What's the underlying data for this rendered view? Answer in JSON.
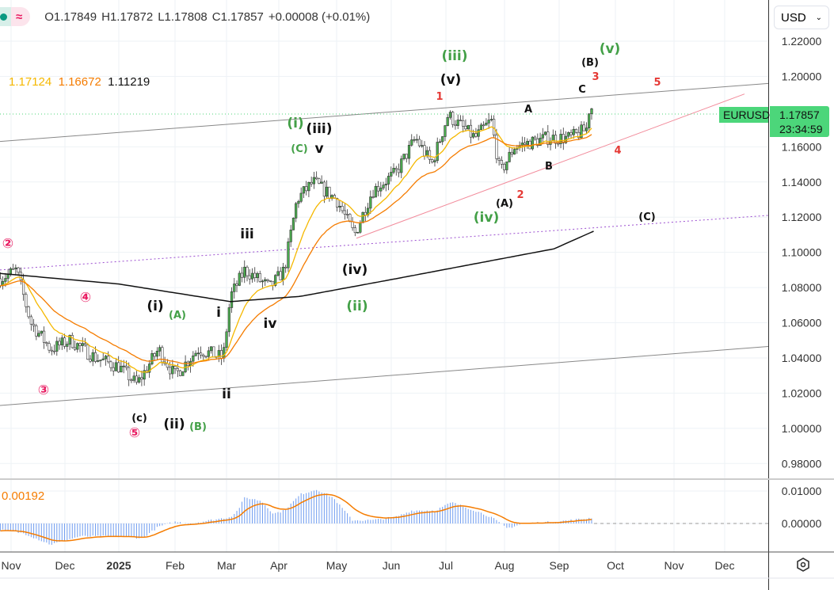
{
  "header": {
    "open": "O1.17849",
    "high": "H1.17872",
    "low": "L1.17808",
    "close": "C1.17857",
    "change": "+0.00008 (+0.01%)",
    "wave_icon": "≈"
  },
  "ma_values": {
    "ma1": "1.17124",
    "ma2": "1.16672",
    "ma3": "1.11219",
    "colors": [
      "#f5b800",
      "#f57c00",
      "#111111"
    ]
  },
  "currency": "USD",
  "symbol_tag": {
    "symbol": "EURUSD",
    "price": "1.17857",
    "countdown": "23:34:59",
    "color": "#4cd67a"
  },
  "macd": {
    "value": "0.00192",
    "ticks": [
      "0.01000",
      "0.00000"
    ]
  },
  "chart_data": {
    "type": "candlestick",
    "symbol": "EURUSD",
    "y_ticks": [
      "1.22000",
      "1.20000",
      "1.16000",
      "1.14000",
      "1.12000",
      "1.10000",
      "1.08000",
      "1.06000",
      "1.04000",
      "1.02000",
      "1.00000",
      "0.98000"
    ],
    "ylim": [
      0.975,
      1.225
    ],
    "x_ticks": [
      "Nov",
      "Dec",
      "2025",
      "Feb",
      "Mar",
      "Apr",
      "May",
      "Jun",
      "Jul",
      "Aug",
      "Sep",
      "Oct",
      "Nov",
      "Dec"
    ],
    "price_path_days_since_nov1": [
      [
        -6,
        1.085
      ],
      [
        3,
        1.09
      ],
      [
        11,
        1.06
      ],
      [
        22,
        1.045
      ],
      [
        33,
        1.05
      ],
      [
        47,
        1.04
      ],
      [
        60,
        1.035
      ],
      [
        70,
        1.025
      ],
      [
        82,
        1.045
      ],
      [
        91,
        1.03
      ],
      [
        104,
        1.045
      ],
      [
        118,
        1.04
      ],
      [
        122,
        1.075
      ],
      [
        130,
        1.09
      ],
      [
        144,
        1.08
      ],
      [
        152,
        1.09
      ],
      [
        159,
        1.13
      ],
      [
        168,
        1.14
      ],
      [
        181,
        1.13
      ],
      [
        191,
        1.11
      ],
      [
        201,
        1.135
      ],
      [
        214,
        1.145
      ],
      [
        225,
        1.165
      ],
      [
        234,
        1.15
      ],
      [
        243,
        1.178
      ],
      [
        258,
        1.165
      ],
      [
        267,
        1.175
      ],
      [
        272,
        1.145
      ],
      [
        280,
        1.16
      ],
      [
        298,
        1.165
      ],
      [
        311,
        1.165
      ],
      [
        320,
        1.17
      ],
      [
        322,
        1.185
      ],
      [
        324,
        1.1786
      ]
    ],
    "long_ma_path": [
      [
        -6,
        1.088
      ],
      [
        60,
        1.082
      ],
      [
        122,
        1.072
      ],
      [
        161,
        1.075
      ],
      [
        214,
        1.085
      ],
      [
        276,
        1.097
      ],
      [
        302,
        1.102
      ],
      [
        324,
        1.112
      ]
    ],
    "macd_path": [
      [
        -6,
        -0.002
      ],
      [
        7,
        -0.003
      ],
      [
        22,
        -0.0065
      ],
      [
        38,
        -0.004
      ],
      [
        60,
        -0.004
      ],
      [
        73,
        -0.0045
      ],
      [
        82,
        -0.001
      ],
      [
        91,
        0.0005
      ],
      [
        100,
        0.0
      ],
      [
        122,
        0.002
      ],
      [
        126,
        0.004
      ],
      [
        130,
        0.008
      ],
      [
        139,
        0.007
      ],
      [
        146,
        0.003
      ],
      [
        152,
        0.004
      ],
      [
        161,
        0.009
      ],
      [
        170,
        0.0105
      ],
      [
        179,
        0.008
      ],
      [
        190,
        0.001
      ],
      [
        201,
        0.001
      ],
      [
        214,
        0.002
      ],
      [
        223,
        0.004
      ],
      [
        236,
        0.004
      ],
      [
        245,
        0.0065
      ],
      [
        258,
        0.004
      ],
      [
        267,
        0.002
      ],
      [
        276,
        -0.0015
      ],
      [
        285,
        0.0
      ],
      [
        302,
        0.0005
      ],
      [
        320,
        0.0015
      ],
      [
        324,
        0.0019
      ]
    ],
    "trendlines": [
      {
        "name": "upper-channel",
        "from": 1.163,
        "to": 1.196,
        "color": "#888888"
      },
      {
        "name": "lower-channel",
        "from": 1.013,
        "to": 1.0465,
        "color": "#888888"
      },
      {
        "name": "c-target",
        "from": 1.09,
        "to": 1.121,
        "color": "#9c4fd0"
      },
      {
        "name": "wave-4-line",
        "from": 1.108,
        "to": 1.19,
        "color": "#f28b9b"
      }
    ],
    "wave_labels": [
      {
        "t": "②",
        "c": "#e91e63"
      },
      {
        "t": "③",
        "c": "#e91e63"
      },
      {
        "t": "④",
        "c": "#e91e63"
      },
      {
        "t": "⑤",
        "c": "#e91e63"
      },
      {
        "t": "(c)",
        "c": "#111"
      },
      {
        "t": "(ii)",
        "c": "#111"
      },
      {
        "t": "(B)",
        "c": "#43a047"
      },
      {
        "t": "(i)",
        "c": "#111"
      },
      {
        "t": "(A)",
        "c": "#43a047"
      },
      {
        "t": "i",
        "c": "#111"
      },
      {
        "t": "ii",
        "c": "#111"
      },
      {
        "t": "iii",
        "c": "#111"
      },
      {
        "t": "iv",
        "c": "#111"
      },
      {
        "t": "(iv)",
        "c": "#111"
      },
      {
        "t": "(ii)",
        "c": "#43a047"
      },
      {
        "t": "(i)",
        "c": "#43a047"
      },
      {
        "t": "(iii)",
        "c": "#111"
      },
      {
        "t": "(C)",
        "c": "#43a047"
      },
      {
        "t": "v",
        "c": "#111"
      },
      {
        "t": "(v)",
        "c": "#111"
      },
      {
        "t": "(iii)",
        "c": "#43a047"
      },
      {
        "t": "1",
        "c": "#e53935"
      },
      {
        "t": "2",
        "c": "#e53935"
      },
      {
        "t": "(A)",
        "c": "#111"
      },
      {
        "t": "(iv)",
        "c": "#43a047"
      },
      {
        "t": "A",
        "c": "#111"
      },
      {
        "t": "B",
        "c": "#111"
      },
      {
        "t": "C",
        "c": "#111"
      },
      {
        "t": "(B)",
        "c": "#111"
      },
      {
        "t": "3",
        "c": "#e53935"
      },
      {
        "t": "(v)",
        "c": "#43a047"
      },
      {
        "t": "5",
        "c": "#e53935"
      },
      {
        "t": "4",
        "c": "#e53935"
      },
      {
        "t": "(C)",
        "c": "#111"
      }
    ]
  }
}
